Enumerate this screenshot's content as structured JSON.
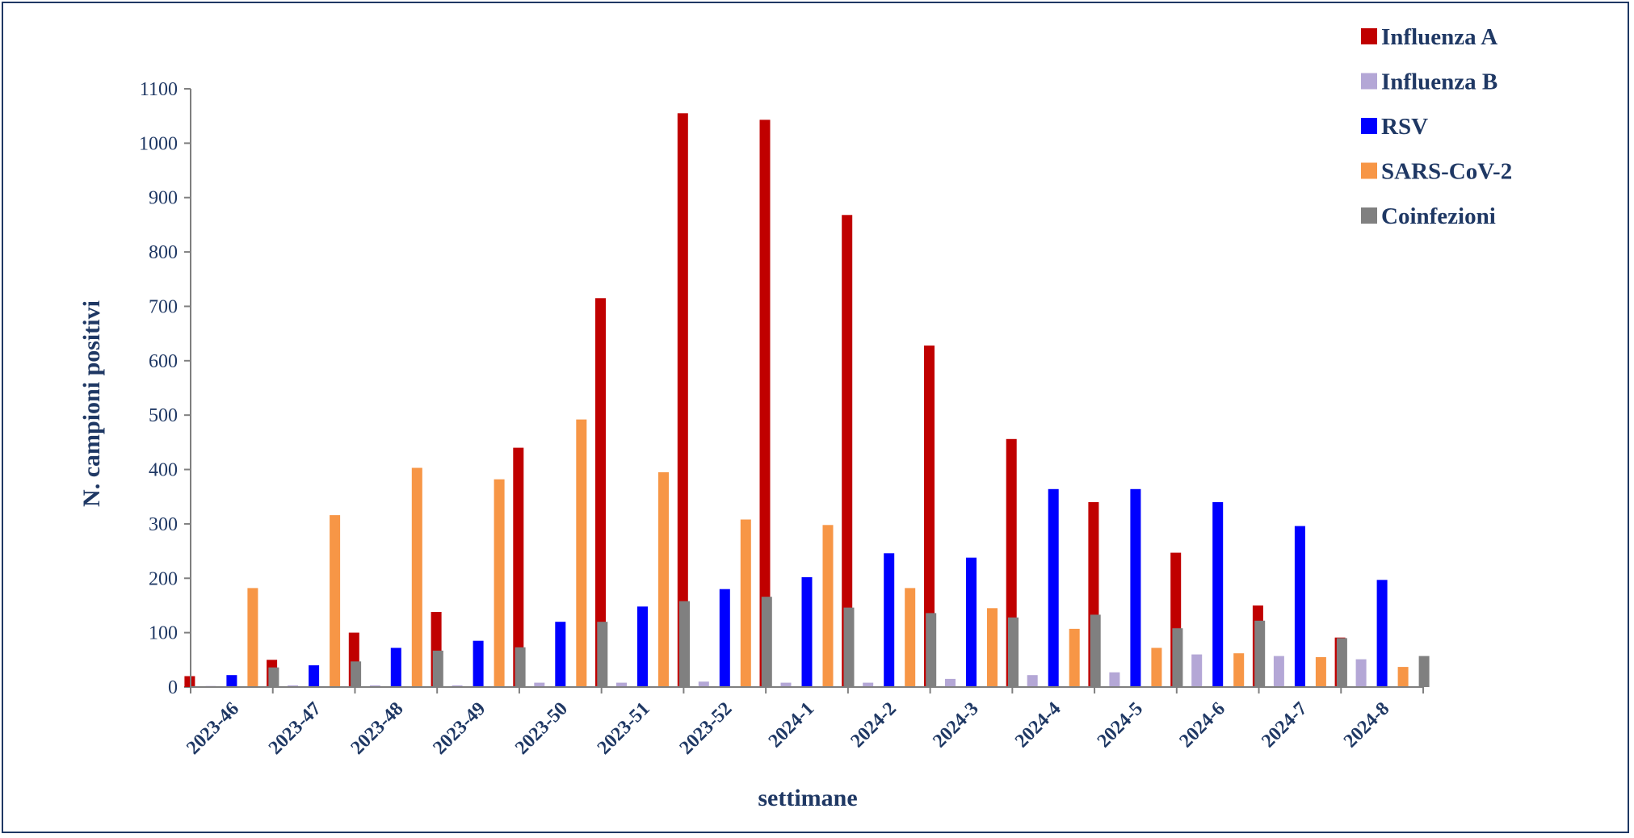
{
  "chart_data": {
    "type": "bar",
    "title": "",
    "xlabel": "settimane",
    "ylabel": "N. campioni positivi",
    "ylim": [
      0,
      1100
    ],
    "yticks": [
      0,
      100,
      200,
      300,
      400,
      500,
      600,
      700,
      800,
      900,
      1000,
      1100
    ],
    "grid": false,
    "legend_position": "top-right",
    "categories": [
      "2023-46",
      "2023-47",
      "2023-48",
      "2023-49",
      "2023-50",
      "2023-51",
      "2023-52",
      "2024-1",
      "2024-2",
      "2024-3",
      "2024-4",
      "2024-5",
      "2024-6",
      "2024-7",
      "2024-8"
    ],
    "series": [
      {
        "name": "Influenza A",
        "color": "#c00000",
        "values": [
          20,
          50,
          100,
          138,
          440,
          715,
          1055,
          1043,
          868,
          628,
          456,
          340,
          247,
          150,
          91
        ]
      },
      {
        "name": "Influenza B",
        "color": "#b4a7d6",
        "values": [
          2,
          3,
          3,
          3,
          8,
          8,
          10,
          8,
          8,
          15,
          22,
          27,
          60,
          57,
          51
        ]
      },
      {
        "name": "RSV",
        "color": "#0000ff",
        "values": [
          22,
          40,
          72,
          85,
          120,
          148,
          180,
          202,
          246,
          238,
          364,
          364,
          340,
          296,
          197
        ]
      },
      {
        "name": "SARS-CoV-2",
        "color": "#f79646",
        "values": [
          182,
          316,
          403,
          382,
          492,
          395,
          308,
          298,
          182,
          145,
          107,
          72,
          62,
          55,
          37
        ]
      },
      {
        "name": "Coinfezioni",
        "color": "#808080",
        "values": [
          36,
          47,
          67,
          73,
          120,
          158,
          166,
          146,
          136,
          128,
          133,
          108,
          122,
          90,
          57
        ]
      }
    ]
  }
}
